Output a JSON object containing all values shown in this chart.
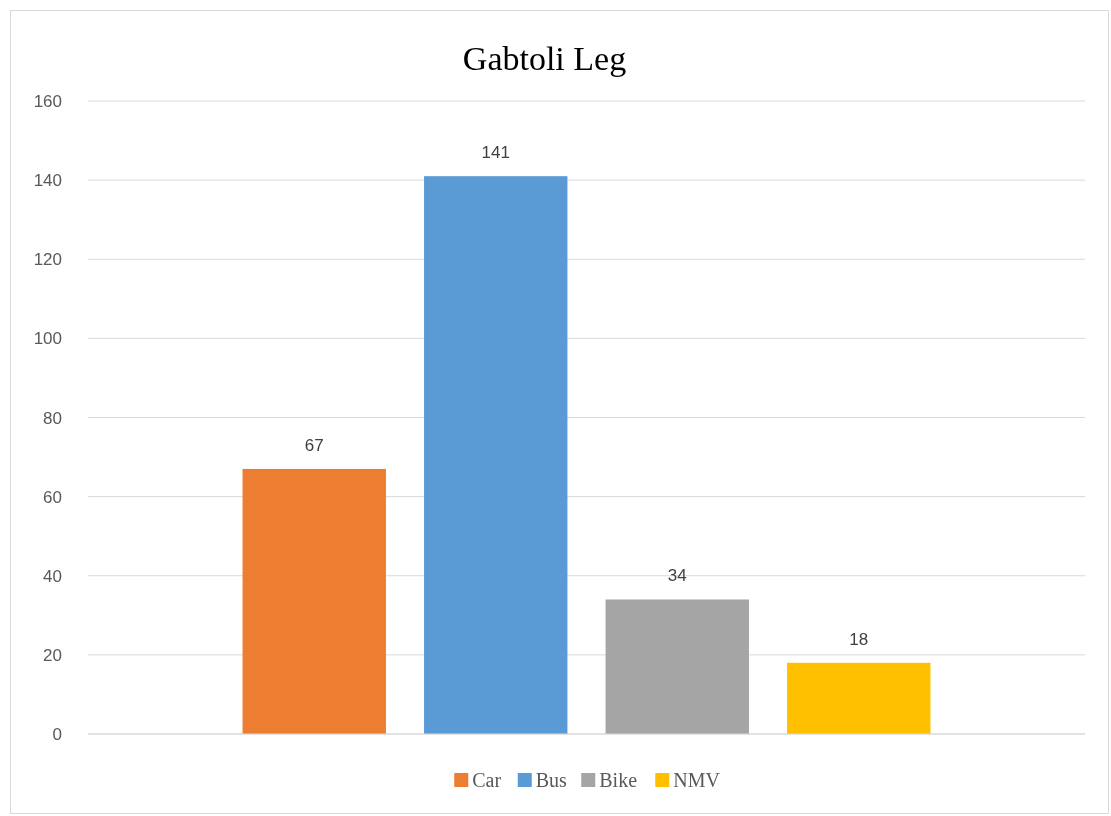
{
  "chart_data": {
    "type": "bar",
    "title": "Gabtoli Leg",
    "categories": [
      null
    ],
    "series": [
      {
        "name": "Car",
        "color": "#ed7d31",
        "values": [
          67
        ]
      },
      {
        "name": "Bus",
        "color": "#5b9bd5",
        "values": [
          141
        ]
      },
      {
        "name": "Bike",
        "color": "#a5a5a5",
        "values": [
          34
        ]
      },
      {
        "name": "NMV",
        "color": "#ffc000",
        "values": [
          18
        ]
      }
    ],
    "ylim": [
      0,
      160
    ],
    "yticks": [
      0,
      20,
      40,
      60,
      80,
      100,
      120,
      140,
      160
    ],
    "grid": "y",
    "data_labels": true,
    "legend": "bottom"
  }
}
